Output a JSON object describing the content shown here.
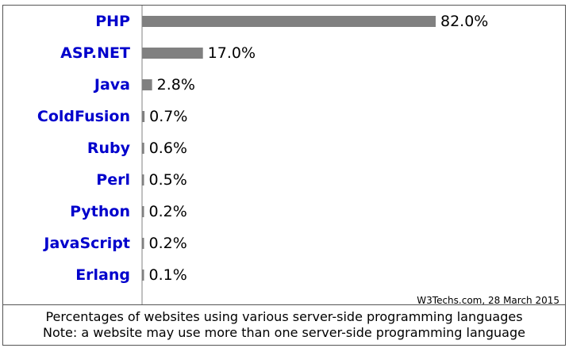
{
  "chart_data": {
    "type": "bar",
    "orientation": "horizontal",
    "categories": [
      "PHP",
      "ASP.NET",
      "Java",
      "ColdFusion",
      "Ruby",
      "Perl",
      "Python",
      "JavaScript",
      "Erlang"
    ],
    "values": [
      82.0,
      17.0,
      2.8,
      0.7,
      0.6,
      0.5,
      0.2,
      0.2,
      0.1
    ],
    "value_labels": [
      "82.0%",
      "17.0%",
      "2.8%",
      "0.7%",
      "0.6%",
      "0.5%",
      "0.2%",
      "0.2%",
      "0.1%"
    ],
    "xlim": [
      0,
      100
    ],
    "grid": false,
    "legend": "none"
  },
  "credit": "W3Techs.com, 28 March 2015",
  "caption": {
    "line1": "Percentages of websites using various server-side programming languages",
    "line2": "Note: a website may use more than one server-side programming language"
  },
  "colors": {
    "bar": "#808080",
    "category_label": "#0000cc",
    "border": "#555555",
    "axis": "#808080"
  }
}
